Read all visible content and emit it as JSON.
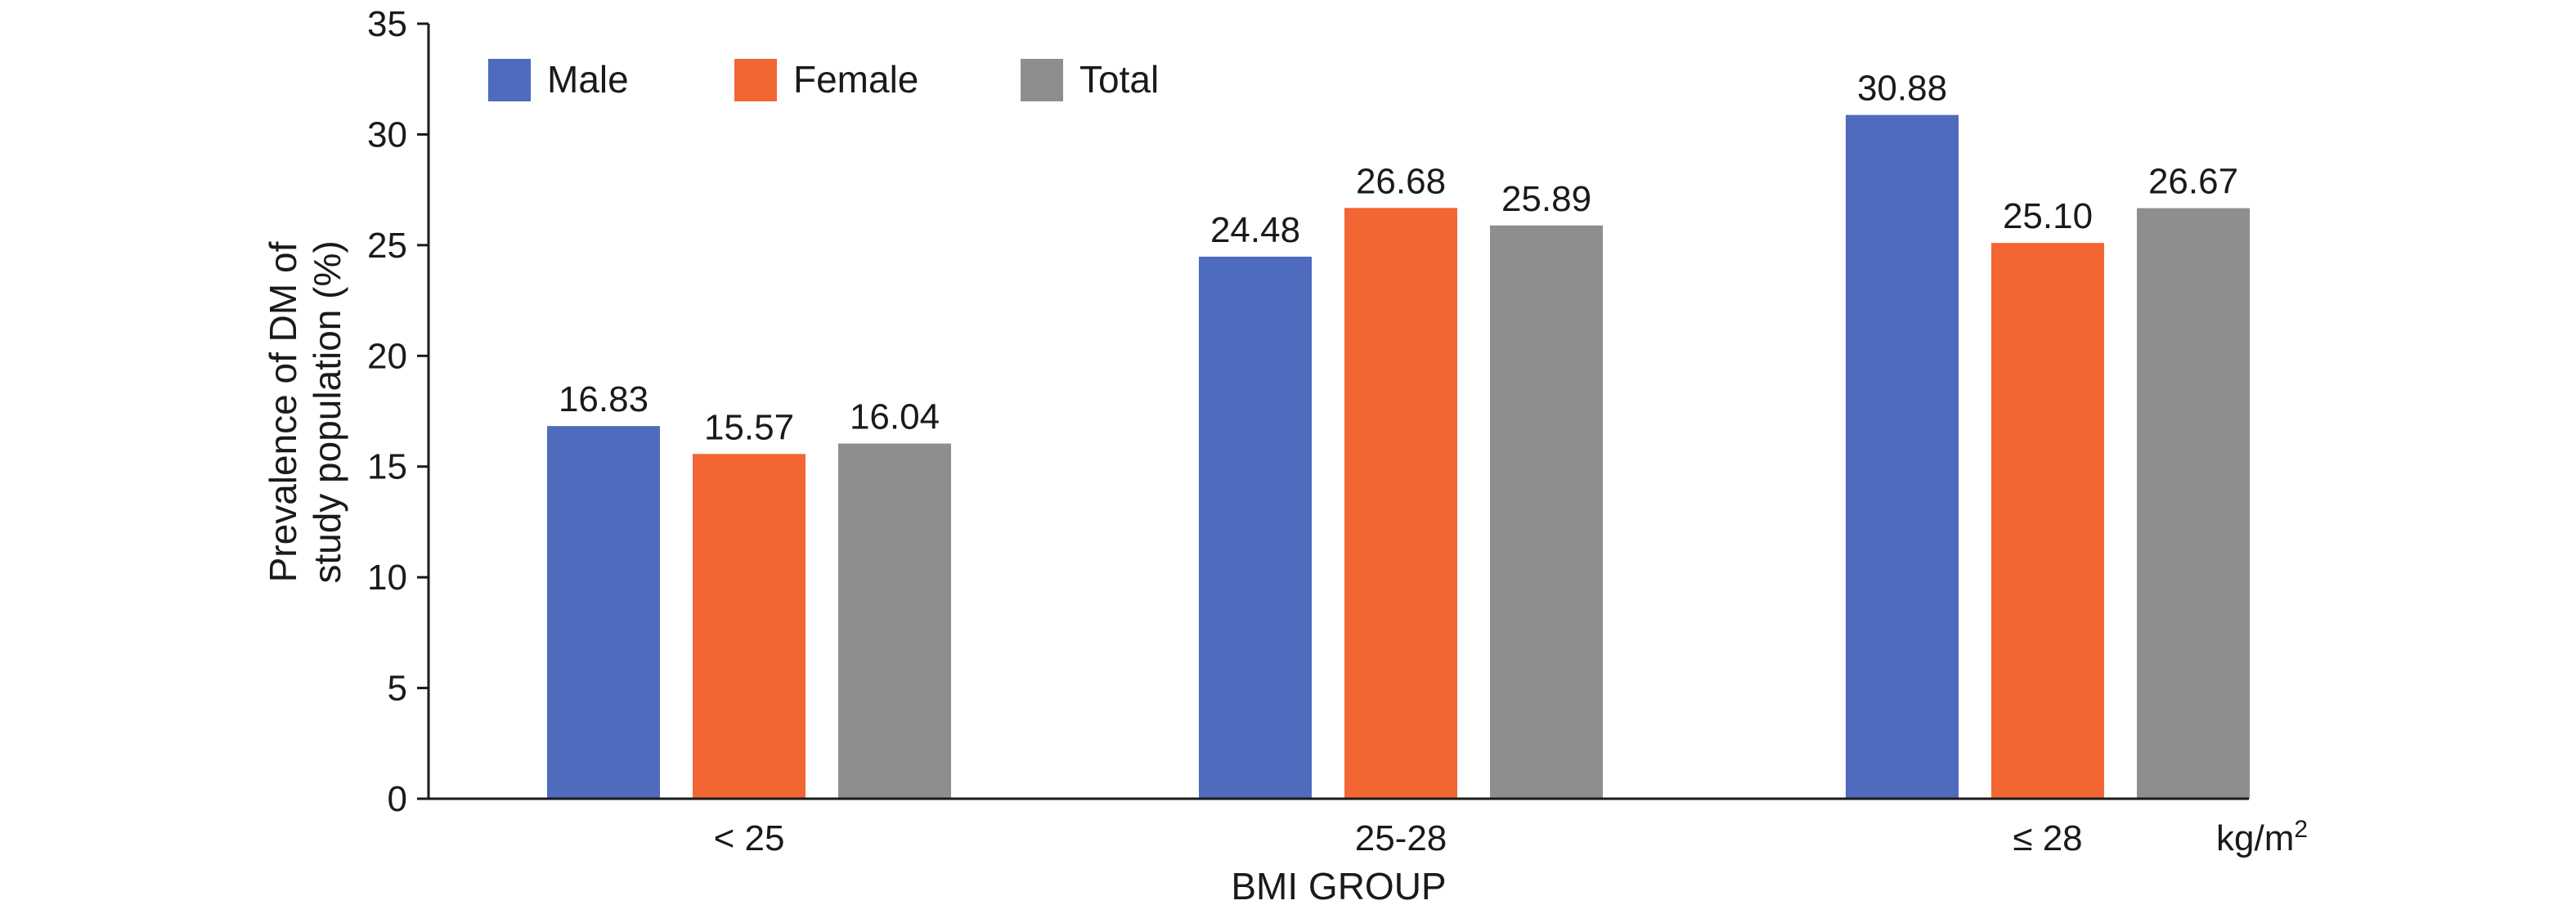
{
  "chart_data": {
    "type": "bar",
    "categories": [
      "< 25",
      "25-28",
      "≤ 28"
    ],
    "series": [
      {
        "name": "Male",
        "color": "#4E6BBD",
        "values": [
          16.83,
          24.48,
          30.88
        ],
        "labels": [
          "16.83",
          "24.48",
          "30.88"
        ]
      },
      {
        "name": "Female",
        "color": "#F26633",
        "values": [
          15.57,
          26.68,
          25.1
        ],
        "labels": [
          "15.57",
          "26.68",
          "25.10"
        ]
      },
      {
        "name": "Total",
        "color": "#8F8E8F",
        "values": [
          16.04,
          25.89,
          26.67
        ],
        "labels": [
          "16.04",
          "25.89",
          "26.67"
        ]
      }
    ],
    "xlabel": "BMI GROUP",
    "x_unit": {
      "base": "kg/m",
      "sup": "2"
    },
    "ylabel_lines": [
      "Prevalence of DM of",
      "study population (%)"
    ],
    "ylim": [
      0,
      35
    ],
    "yticks": [
      0,
      5,
      10,
      15,
      20,
      25,
      30,
      35
    ],
    "grid": false,
    "legend_position": "top-left"
  }
}
